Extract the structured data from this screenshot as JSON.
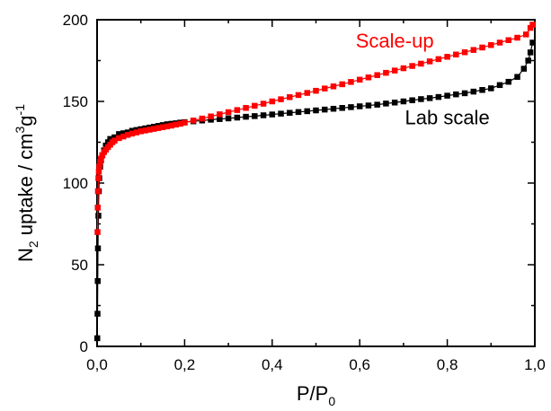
{
  "chart_data": {
    "type": "scatter",
    "title": "",
    "xlabel": {
      "main": "P/P",
      "sub": "0"
    },
    "ylabel": {
      "pre": "N",
      "sub": "2",
      "mid": " uptake / cm",
      "sup1": "3",
      "mid2": "g",
      "sup2": "-1"
    },
    "xlim": [
      0,
      1.0
    ],
    "ylim": [
      0,
      200
    ],
    "xticks": [
      0,
      0.2,
      0.4,
      0.6,
      0.8,
      1.0
    ],
    "xtick_labels": [
      "0,0",
      "0,2",
      "0,4",
      "0,6",
      "0,8",
      "1,0"
    ],
    "yticks": [
      0,
      50,
      100,
      150,
      200
    ],
    "ytick_labels": [
      "0",
      "50",
      "100",
      "150",
      "200"
    ],
    "grid": false,
    "series": [
      {
        "name": "Lab scale",
        "color": "#000000",
        "marker": "square",
        "x": [
          0.0005,
          0.001,
          0.0015,
          0.002,
          0.003,
          0.004,
          0.005,
          0.007,
          0.009,
          0.012,
          0.016,
          0.02,
          0.025,
          0.03,
          0.04,
          0.05,
          0.06,
          0.07,
          0.08,
          0.09,
          0.1,
          0.11,
          0.12,
          0.13,
          0.14,
          0.15,
          0.16,
          0.17,
          0.18,
          0.19,
          0.2,
          0.22,
          0.24,
          0.26,
          0.28,
          0.3,
          0.32,
          0.34,
          0.36,
          0.38,
          0.4,
          0.42,
          0.44,
          0.46,
          0.48,
          0.5,
          0.52,
          0.54,
          0.56,
          0.58,
          0.6,
          0.62,
          0.64,
          0.66,
          0.68,
          0.7,
          0.72,
          0.74,
          0.76,
          0.78,
          0.8,
          0.82,
          0.84,
          0.86,
          0.88,
          0.9,
          0.92,
          0.94,
          0.96,
          0.975,
          0.985,
          0.99,
          0.995
        ],
        "y": [
          5,
          20,
          40,
          60,
          80,
          95,
          103,
          110,
          114,
          117,
          120,
          123,
          125,
          127,
          128,
          130,
          130.5,
          131,
          132,
          132.5,
          133,
          133.5,
          134,
          134.5,
          135,
          135.5,
          136,
          136.3,
          136.6,
          137,
          137.3,
          137.8,
          138.3,
          138.8,
          139.2,
          139.6,
          140.1,
          140.6,
          141,
          141.5,
          142,
          142.5,
          143,
          143.5,
          144,
          144.5,
          145,
          145.5,
          146,
          146.5,
          147,
          147.5,
          148,
          148.7,
          149.3,
          150,
          150.7,
          151.4,
          152,
          152.7,
          153.5,
          154.3,
          155,
          156,
          157,
          158,
          160,
          162,
          165,
          170,
          175,
          180,
          186
        ]
      },
      {
        "name": "Scale-up",
        "color": "#ff0000",
        "marker": "square",
        "x": [
          0.001,
          0.0015,
          0.002,
          0.003,
          0.004,
          0.005,
          0.007,
          0.009,
          0.012,
          0.016,
          0.02,
          0.025,
          0.03,
          0.035,
          0.04,
          0.05,
          0.06,
          0.07,
          0.08,
          0.09,
          0.1,
          0.11,
          0.12,
          0.13,
          0.14,
          0.15,
          0.16,
          0.17,
          0.18,
          0.19,
          0.2,
          0.22,
          0.24,
          0.26,
          0.28,
          0.3,
          0.32,
          0.34,
          0.36,
          0.38,
          0.4,
          0.42,
          0.44,
          0.46,
          0.48,
          0.5,
          0.52,
          0.54,
          0.56,
          0.58,
          0.6,
          0.62,
          0.64,
          0.66,
          0.68,
          0.7,
          0.72,
          0.74,
          0.76,
          0.78,
          0.8,
          0.82,
          0.84,
          0.86,
          0.88,
          0.9,
          0.92,
          0.94,
          0.96,
          0.98,
          0.99,
          0.995
        ],
        "y": [
          70,
          85,
          95,
          103,
          107,
          110,
          113,
          115,
          117,
          119,
          120.5,
          122,
          123.5,
          125,
          126,
          127.5,
          128.5,
          129.5,
          130.3,
          131,
          131.7,
          132.2,
          132.7,
          133.2,
          133.7,
          134.2,
          134.7,
          135.2,
          135.8,
          136.3,
          137,
          138.3,
          139.5,
          140.8,
          142.1,
          143.4,
          144.7,
          146,
          147.3,
          148.6,
          150,
          151.3,
          152.6,
          153.9,
          155.2,
          156.5,
          157.9,
          159.2,
          160.5,
          161.9,
          163.3,
          164.7,
          166.1,
          167.5,
          168.9,
          170.3,
          171.7,
          173.1,
          174.5,
          175.9,
          177.3,
          178.7,
          180.1,
          181.5,
          183,
          184.5,
          186,
          187.5,
          189,
          191,
          195,
          197
        ]
      }
    ],
    "annotations": [
      {
        "text": "Scale-up",
        "color": "#ff0000",
        "x": 0.68,
        "y": 183
      },
      {
        "text": "Lab scale",
        "color": "#000000",
        "x": 0.8,
        "y": 136
      }
    ]
  }
}
